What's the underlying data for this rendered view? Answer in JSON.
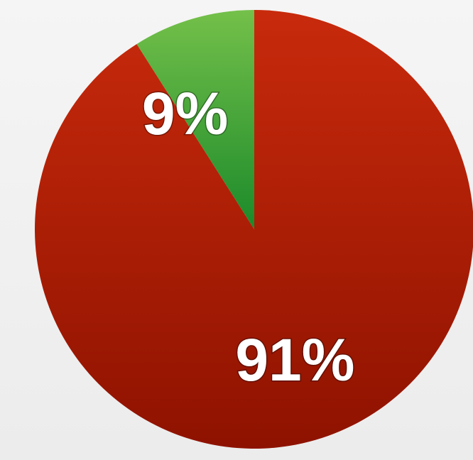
{
  "chart_data": {
    "type": "pie",
    "title": "",
    "slices": [
      {
        "label": "9%",
        "value": 9,
        "color": "#2e9a35",
        "color_top": "#74c04a",
        "color_bottom": "#1b8a2a"
      },
      {
        "label": "91%",
        "value": 91,
        "color": "#b01a05",
        "color_top": "#c82a0c",
        "color_bottom": "#8e1200"
      }
    ],
    "start_angle_deg": 0,
    "direction": "counterclockwise-from-top"
  }
}
